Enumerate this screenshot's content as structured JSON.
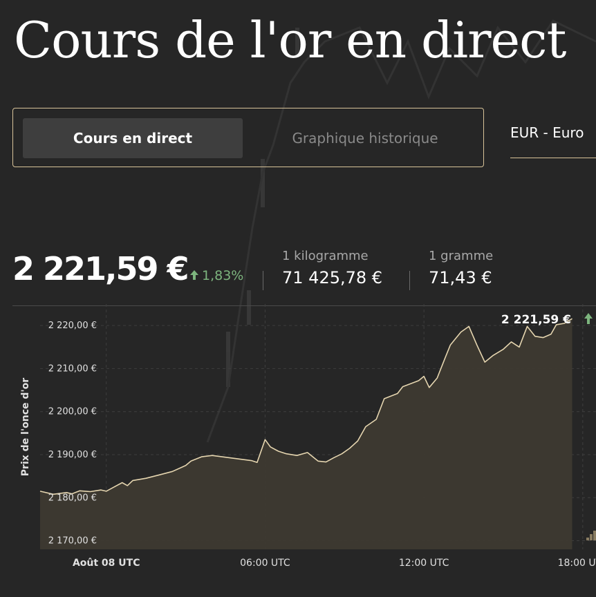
{
  "page": {
    "title": "Cours de l'or en direct"
  },
  "tabs": [
    {
      "label": "Cours en direct",
      "active": true
    },
    {
      "label": "Graphique historique",
      "active": false
    }
  ],
  "currency": {
    "selected": "EUR - Euro"
  },
  "price": {
    "main": "2 221,59 €",
    "change": "1,83%",
    "kilogram_label": "1 kilogramme",
    "kilogram_value": "71 425,78 €",
    "gram_label": "1 gramme",
    "gram_value": "71,43 €"
  },
  "colors": {
    "background": "#262626",
    "accent_gold": "#d9c49a",
    "line": "#e6d6b0",
    "area": "#3d3930",
    "positive": "#7db57e"
  },
  "icons": {
    "change": "arrow-up-icon",
    "last_change": "arrow-up-icon"
  },
  "chart_data": {
    "type": "area",
    "ylabel": "Prix de l'once d'or",
    "yticks": [
      2170,
      2180,
      2190,
      2200,
      2210,
      2220
    ],
    "ytick_labels": [
      "2 170,00 €",
      "2 180,00 €",
      "2 190,00 €",
      "2 200,00 €",
      "2 210,00 €",
      "2 220,00 €"
    ],
    "ylim": [
      2168,
      2225
    ],
    "xlim": [
      -2.5,
      18.5
    ],
    "xticks": [
      0,
      6,
      12,
      18
    ],
    "xtick_labels": [
      "Août 08 UTC",
      "06:00 UTC",
      "12:00 UTC",
      "18:00 UTC"
    ],
    "grid": true,
    "last_label": "2 221,59 €",
    "series": [
      {
        "x": [
          -2.5,
          -2.0,
          -1.5,
          -1.3,
          -1.0,
          -0.6,
          -0.2,
          0.0,
          0.3,
          0.6,
          0.8,
          1.0,
          1.5,
          2.0,
          2.5,
          3.0,
          3.2,
          3.6,
          4.0,
          4.5,
          5.0,
          5.5,
          5.7,
          6.0,
          6.2,
          6.5,
          6.8,
          7.2,
          7.6,
          8.0,
          8.3,
          8.6,
          8.9,
          9.2,
          9.5,
          9.8,
          10.2,
          10.5,
          11.0,
          11.2,
          11.5,
          11.8,
          12.0,
          12.2,
          12.5,
          12.8,
          13.0,
          13.2,
          13.4,
          13.7,
          14.0,
          14.3,
          14.6,
          15.0,
          15.3,
          15.6,
          15.9,
          16.2,
          16.5,
          16.8,
          17.0,
          17.3,
          17.6
        ],
        "y": [
          2181.5,
          2180.8,
          2181.2,
          2180.9,
          2181.6,
          2181.4,
          2181.8,
          2181.5,
          2182.5,
          2183.5,
          2182.8,
          2184.0,
          2184.5,
          2185.3,
          2186.1,
          2187.5,
          2188.5,
          2189.5,
          2189.8,
          2189.4,
          2189.0,
          2188.6,
          2188.2,
          2193.5,
          2191.8,
          2190.8,
          2190.2,
          2189.8,
          2190.5,
          2188.5,
          2188.3,
          2189.3,
          2190.2,
          2191.5,
          2193.2,
          2196.5,
          2198.2,
          2203.0,
          2204.2,
          2205.8,
          2206.5,
          2207.2,
          2208.2,
          2205.6,
          2207.8,
          2212.5,
          2215.5,
          2217.0,
          2218.5,
          2219.8,
          2215.5,
          2211.5,
          2213.0,
          2214.5,
          2216.2,
          2215.0,
          2219.8,
          2217.5,
          2217.2,
          2218.0,
          2220.2,
          2220.5,
          2221.6
        ]
      }
    ]
  }
}
